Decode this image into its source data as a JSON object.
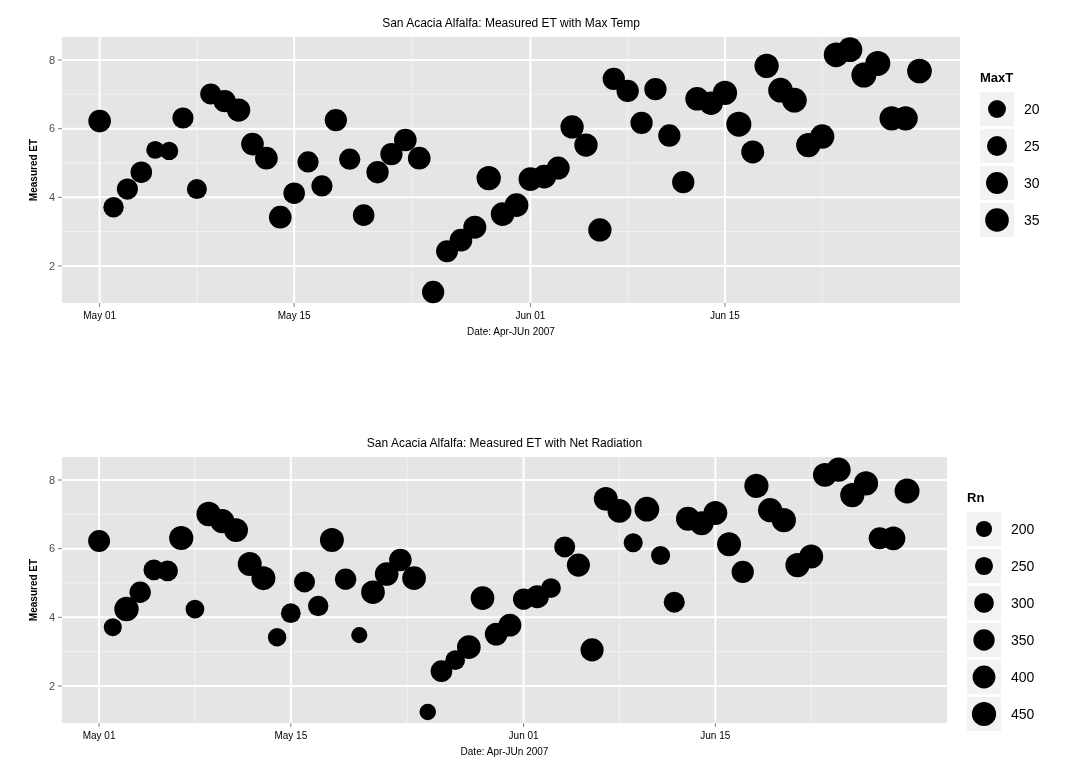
{
  "chart_data": [
    {
      "type": "bubble",
      "title": "San Acacia Alfalfa: Measured ET with Max Temp",
      "xlabel": "Date: Apr-JUn 2007",
      "ylabel": "Measured ET",
      "legend_title": "MaxT",
      "grid": true,
      "color": "#000000",
      "x": [
        "2007-05-01",
        "2007-05-02",
        "2007-05-03",
        "2007-05-04",
        "2007-05-05",
        "2007-05-06",
        "2007-05-07",
        "2007-05-08",
        "2007-05-09",
        "2007-05-10",
        "2007-05-11",
        "2007-05-12",
        "2007-05-13",
        "2007-05-14",
        "2007-05-15",
        "2007-05-16",
        "2007-05-17",
        "2007-05-18",
        "2007-05-19",
        "2007-05-20",
        "2007-05-21",
        "2007-05-22",
        "2007-05-23",
        "2007-05-24",
        "2007-05-25",
        "2007-05-26",
        "2007-05-27",
        "2007-05-28",
        "2007-05-29",
        "2007-05-30",
        "2007-05-31",
        "2007-06-01",
        "2007-06-02",
        "2007-06-03",
        "2007-06-04",
        "2007-06-05",
        "2007-06-06",
        "2007-06-07",
        "2007-06-08",
        "2007-06-09",
        "2007-06-10",
        "2007-06-11",
        "2007-06-12",
        "2007-06-13",
        "2007-06-14",
        "2007-06-15",
        "2007-06-16",
        "2007-06-17",
        "2007-06-18",
        "2007-06-19",
        "2007-06-20",
        "2007-06-21",
        "2007-06-22",
        "2007-06-23",
        "2007-06-24",
        "2007-06-25",
        "2007-06-26",
        "2007-06-27",
        "2007-06-28",
        "2007-06-29"
      ],
      "values": [
        6.22,
        3.71,
        4.24,
        4.73,
        5.38,
        5.35,
        6.31,
        4.24,
        7.01,
        6.8,
        6.54,
        5.55,
        5.14,
        3.42,
        4.12,
        5.03,
        4.33,
        6.25,
        5.11,
        3.48,
        4.73,
        5.26,
        5.67,
        5.14,
        1.24,
        2.43,
        2.75,
        3.13,
        4.56,
        3.51,
        3.77,
        4.53,
        4.6,
        4.85,
        6.05,
        5.52,
        3.05,
        7.45,
        7.1,
        6.17,
        7.15,
        5.8,
        4.44,
        6.87,
        6.74,
        7.04,
        6.13,
        5.32,
        7.83,
        7.12,
        6.83,
        5.52,
        5.77,
        8.15,
        8.3,
        7.56,
        7.9,
        6.3,
        6.3,
        7.68
      ],
      "sizes": [
        32,
        26,
        28,
        29,
        20,
        21,
        28,
        25,
        28,
        31,
        34,
        32,
        32,
        32,
        29,
        28,
        28,
        31,
        28,
        29,
        31,
        31,
        32,
        32,
        31,
        30,
        32,
        33,
        37,
        35,
        35,
        35,
        35,
        33,
        34,
        34,
        34,
        31,
        31,
        31,
        31,
        31,
        31,
        35,
        35,
        37,
        39,
        33,
        37,
        38,
        38,
        37,
        37,
        38,
        38,
        39,
        39,
        37,
        37,
        38
      ],
      "size_legend": [
        20,
        25,
        30,
        35
      ],
      "xlim": [
        "2007-04-28T07:00",
        "2007-07-01T22:00"
      ],
      "xticks": [
        {
          "value": "2007-05-01",
          "label": "May 01"
        },
        {
          "value": "2007-05-15",
          "label": "May 15"
        },
        {
          "value": "2007-06-01",
          "label": "Jun 01"
        },
        {
          "value": "2007-06-15",
          "label": "Jun 15"
        }
      ],
      "ylim": [
        0.92,
        8.67
      ],
      "yticks": [
        2,
        4,
        6,
        8
      ]
    },
    {
      "type": "bubble",
      "title": "San Acacia Alfalfa: Measured ET with Net Radiation",
      "xlabel": "Date: Apr-JUn 2007",
      "ylabel": "Measured ET",
      "legend_title": "Rn",
      "grid": true,
      "color": "#000000",
      "x": [
        "2007-05-01",
        "2007-05-02",
        "2007-05-03",
        "2007-05-04",
        "2007-05-05",
        "2007-05-06",
        "2007-05-07",
        "2007-05-08",
        "2007-05-09",
        "2007-05-10",
        "2007-05-11",
        "2007-05-12",
        "2007-05-13",
        "2007-05-14",
        "2007-05-15",
        "2007-05-16",
        "2007-05-17",
        "2007-05-18",
        "2007-05-19",
        "2007-05-20",
        "2007-05-21",
        "2007-05-22",
        "2007-05-23",
        "2007-05-24",
        "2007-05-25",
        "2007-05-26",
        "2007-05-27",
        "2007-05-28",
        "2007-05-29",
        "2007-05-30",
        "2007-05-31",
        "2007-06-01",
        "2007-06-02",
        "2007-06-03",
        "2007-06-04",
        "2007-06-05",
        "2007-06-06",
        "2007-06-07",
        "2007-06-08",
        "2007-06-09",
        "2007-06-10",
        "2007-06-11",
        "2007-06-12",
        "2007-06-13",
        "2007-06-14",
        "2007-06-15",
        "2007-06-16",
        "2007-06-17",
        "2007-06-18",
        "2007-06-19",
        "2007-06-20",
        "2007-06-21",
        "2007-06-22",
        "2007-06-23",
        "2007-06-24",
        "2007-06-25",
        "2007-06-26",
        "2007-06-27",
        "2007-06-28",
        "2007-06-29"
      ],
      "values": [
        6.22,
        3.71,
        4.24,
        4.73,
        5.38,
        5.35,
        6.31,
        4.24,
        7.01,
        6.8,
        6.54,
        5.55,
        5.14,
        3.42,
        4.12,
        5.03,
        4.33,
        6.25,
        5.11,
        3.48,
        4.73,
        5.26,
        5.67,
        5.14,
        1.24,
        2.43,
        2.75,
        3.13,
        4.56,
        3.51,
        3.77,
        4.53,
        4.6,
        4.85,
        6.05,
        5.52,
        3.05,
        7.45,
        7.1,
        6.17,
        7.15,
        5.8,
        4.44,
        6.87,
        6.74,
        7.04,
        6.13,
        5.32,
        7.83,
        7.12,
        6.83,
        5.52,
        5.77,
        8.15,
        8.3,
        7.56,
        7.9,
        6.3,
        6.3,
        7.68
      ],
      "sizes": [
        370,
        250,
        460,
        350,
        330,
        330,
        450,
        270,
        460,
        450,
        440,
        440,
        440,
        260,
        300,
        340,
        320,
        440,
        350,
        200,
        430,
        430,
        390,
        430,
        210,
        360,
        300,
        430,
        430,
        400,
        400,
        350,
        410,
        300,
        340,
        410,
        410,
        440,
        440,
        280,
        470,
        280,
        340,
        440,
        440,
        440,
        440,
        380,
        450,
        450,
        450,
        450,
        440,
        440,
        450,
        450,
        450,
        370,
        440,
        480
      ],
      "size_legend": [
        200,
        250,
        300,
        350,
        400,
        450
      ],
      "xlim": [
        "2007-04-28T07:00",
        "2007-07-01T22:00"
      ],
      "xticks": [
        {
          "value": "2007-05-01",
          "label": "May 01"
        },
        {
          "value": "2007-05-15",
          "label": "May 15"
        },
        {
          "value": "2007-06-01",
          "label": "Jun 01"
        },
        {
          "value": "2007-06-15",
          "label": "Jun 15"
        }
      ],
      "ylim": [
        0.92,
        8.67
      ],
      "yticks": [
        2,
        4,
        6,
        8
      ]
    }
  ]
}
